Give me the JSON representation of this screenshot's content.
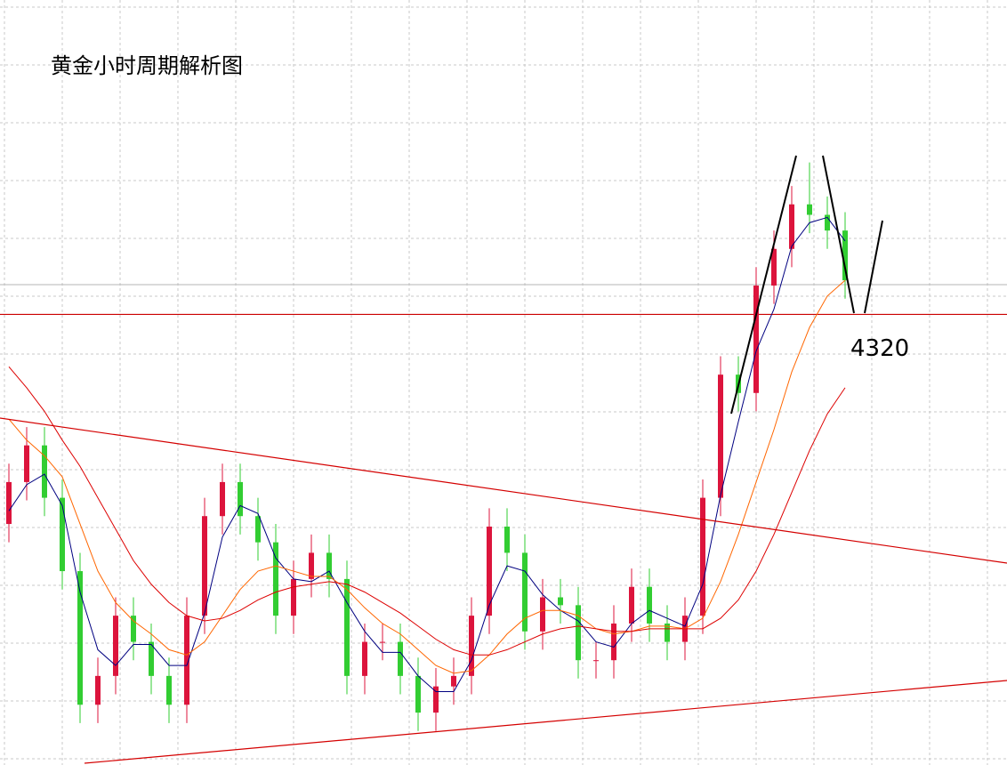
{
  "chart_data": {
    "type": "candlestick",
    "title": "黄金小时周期解析图",
    "open": [
      4240,
      4256,
      4270,
      4250,
      4222,
      4171,
      4182,
      4205,
      4195,
      4182,
      4171,
      4205,
      4243,
      4256,
      4243,
      4233,
      4205,
      4219,
      4229,
      4219,
      4182,
      4195,
      4195,
      4182,
      4168,
      4178,
      4182,
      4205,
      4239,
      4229,
      4199,
      4212,
      4209,
      4188,
      4188,
      4202,
      4216,
      4202,
      4195,
      4205,
      4250,
      4297,
      4290,
      4331,
      4345,
      4362,
      4358,
      4352
    ],
    "high": [
      4263,
      4277,
      4277,
      4257,
      4229,
      4189,
      4212,
      4212,
      4202,
      4189,
      4212,
      4250,
      4263,
      4263,
      4250,
      4240,
      4226,
      4236,
      4236,
      4226,
      4202,
      4202,
      4202,
      4189,
      4185,
      4189,
      4212,
      4246,
      4246,
      4236,
      4219,
      4219,
      4216,
      4195,
      4209,
      4223,
      4223,
      4209,
      4212,
      4257,
      4304,
      4304,
      4338,
      4352,
      4369,
      4378,
      4365,
      4359
    ],
    "low": [
      4233,
      4249,
      4243,
      4215,
      4164,
      4164,
      4175,
      4188,
      4175,
      4164,
      4164,
      4198,
      4236,
      4236,
      4226,
      4198,
      4198,
      4212,
      4212,
      4175,
      4175,
      4188,
      4175,
      4161,
      4161,
      4171,
      4175,
      4198,
      4222,
      4192,
      4192,
      4202,
      4181,
      4181,
      4181,
      4195,
      4195,
      4188,
      4188,
      4198,
      4243,
      4283,
      4283,
      4324,
      4338,
      4351,
      4345,
      4326
    ],
    "close": [
      4256,
      4270,
      4250,
      4222,
      4171,
      4182,
      4205,
      4195,
      4182,
      4171,
      4205,
      4243,
      4256,
      4243,
      4233,
      4205,
      4219,
      4229,
      4219,
      4182,
      4195,
      4195,
      4182,
      4168,
      4178,
      4182,
      4205,
      4239,
      4229,
      4199,
      4212,
      4209,
      4188,
      4188,
      4202,
      4216,
      4202,
      4195,
      4205,
      4250,
      4297,
      4290,
      4331,
      4345,
      4362,
      4358,
      4352,
      4333
    ],
    "up_color": "#dc143c",
    "down_color": "#32cd32",
    "moving_averages": [
      {
        "color": "#000080",
        "values": [
          4245,
          4255,
          4259,
          4247,
          4214,
          4192,
          4186,
          4194,
          4194,
          4186,
          4186,
          4206,
          4235,
          4247,
          4244,
          4227,
          4219,
          4218,
          4222,
          4210,
          4199,
          4191,
          4191,
          4182,
          4176,
          4176,
          4188,
          4209,
          4224,
          4222,
          4213,
          4207,
          4203,
          4195,
          4193,
          4202,
          4207,
          4204,
          4201,
          4217,
          4251,
          4279,
          4306,
          4322,
          4346,
          4355,
          4357,
          4348
        ]
      },
      {
        "color": "#ff6600",
        "values": [
          4280,
          4272,
          4266,
          4258,
          4240,
          4222,
          4210,
          4203,
          4198,
          4192,
          4190,
          4195,
          4205,
          4215,
          4222,
          4224,
          4222,
          4220,
          4220,
          4215,
          4208,
          4202,
          4198,
          4192,
          4186,
          4183,
          4184,
          4190,
          4198,
          4204,
          4207,
          4207,
          4205,
          4200,
          4198,
          4199,
          4201,
          4201,
          4200,
          4204,
          4218,
          4236,
          4256,
          4276,
          4298,
          4315,
          4327,
          4333
        ]
      },
      {
        "color": "#dd0000",
        "values": [
          4300,
          4292,
          4283,
          4272,
          4262,
          4250,
          4238,
          4226,
          4217,
          4210,
          4205,
          4203,
          4204,
          4207,
          4211,
          4214,
          4216,
          4217,
          4218,
          4217,
          4214,
          4210,
          4206,
          4201,
          4196,
          4192,
          4190,
          4190,
          4192,
          4195,
          4198,
          4200,
          4201,
          4200,
          4199,
          4199,
          4200,
          4200,
          4200,
          4200,
          4204,
          4211,
          4222,
          4236,
          4252,
          4268,
          4282,
          4292
        ]
      }
    ],
    "reference_line": 4320,
    "reference_color": "#cc0000",
    "ylim": [
      4148,
      4440
    ]
  }
}
